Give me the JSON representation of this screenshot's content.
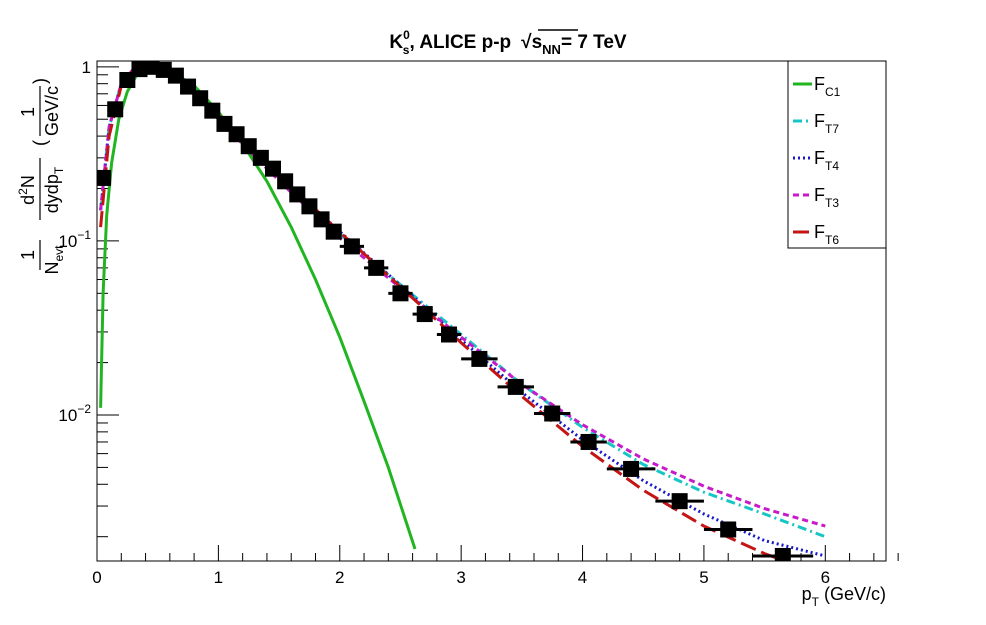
{
  "chart_data": {
    "type": "line",
    "title": {
      "base": "K",
      "sup": "0",
      "sub": "s",
      "rest": ", ALICE p-p",
      "energy_var": "s",
      "energy_sub": "NN",
      "energy_rest": "= 7 TeV"
    },
    "xlabel": {
      "base": "p",
      "sub": "T",
      "unit": " (GeV/c)"
    },
    "ylabel": {
      "frac1_num": "1",
      "frac1_den": "N",
      "frac1_den_sub": "evt",
      "frac2_num": "d",
      "frac2_num_sup": "2",
      "frac2_num_rest": "N",
      "frac2_den": "dydp",
      "frac2_den_sub": "T",
      "paren_open": "(",
      "frac3_num": "1",
      "frac3_den": "GeV/c",
      "paren_close": ")"
    },
    "x_ticks": [
      {
        "value": 0,
        "label": "0"
      },
      {
        "value": 1,
        "label": "1"
      },
      {
        "value": 2,
        "label": "2"
      },
      {
        "value": 3,
        "label": "3"
      },
      {
        "value": 4,
        "label": "4"
      },
      {
        "value": 5,
        "label": "5"
      },
      {
        "value": 6,
        "label": "6"
      }
    ],
    "y_ticks": [
      {
        "value": 1,
        "label": "1",
        "sup": ""
      },
      {
        "value": 0.1,
        "label": "10",
        "sup": "−1"
      },
      {
        "value": 0.01,
        "label": "10",
        "sup": "−2"
      }
    ],
    "xlim": [
      0,
      6.5
    ],
    "ylim": [
      0.00145,
      1.08
    ],
    "y_scale": "log",
    "grid": false,
    "legend_position": "top-right",
    "series": [
      {
        "name_base": "F",
        "name_sub": "C1",
        "color": "#22b522",
        "dash": "",
        "points": [
          [
            0.03,
            0.011
          ],
          [
            0.05,
            0.05
          ],
          [
            0.08,
            0.14
          ],
          [
            0.12,
            0.28
          ],
          [
            0.18,
            0.5
          ],
          [
            0.25,
            0.72
          ],
          [
            0.32,
            0.88
          ],
          [
            0.4,
            0.98
          ],
          [
            0.5,
            1.0
          ],
          [
            0.6,
            0.95
          ],
          [
            0.8,
            0.78
          ],
          [
            1.0,
            0.55
          ],
          [
            1.2,
            0.36
          ],
          [
            1.4,
            0.22
          ],
          [
            1.6,
            0.12
          ],
          [
            1.8,
            0.06
          ],
          [
            2.0,
            0.028
          ],
          [
            2.2,
            0.012
          ],
          [
            2.4,
            0.005
          ],
          [
            2.62,
            0.0017
          ]
        ]
      },
      {
        "name_base": "F",
        "name_sub": "T7",
        "color": "#16c6c6",
        "dash": "9,4,2,4",
        "points": [
          [
            0.03,
            0.15
          ],
          [
            0.1,
            0.45
          ],
          [
            0.2,
            0.8
          ],
          [
            0.3,
            0.97
          ],
          [
            0.42,
            1.02
          ],
          [
            0.55,
            0.97
          ],
          [
            0.7,
            0.83
          ],
          [
            0.85,
            0.67
          ],
          [
            1.0,
            0.52
          ],
          [
            1.2,
            0.38
          ],
          [
            1.4,
            0.27
          ],
          [
            1.6,
            0.2
          ],
          [
            1.8,
            0.148
          ],
          [
            2.0,
            0.11
          ],
          [
            2.3,
            0.073
          ],
          [
            2.6,
            0.049
          ],
          [
            3.0,
            0.029
          ],
          [
            3.5,
            0.015
          ],
          [
            4.0,
            0.0085
          ],
          [
            4.5,
            0.0052
          ],
          [
            5.0,
            0.0036
          ],
          [
            5.5,
            0.0027
          ],
          [
            6.0,
            0.002
          ]
        ]
      },
      {
        "name_base": "F",
        "name_sub": "T4",
        "color": "#1818c8",
        "dash": "2,3",
        "points": [
          [
            0.03,
            0.15
          ],
          [
            0.1,
            0.45
          ],
          [
            0.2,
            0.8
          ],
          [
            0.3,
            0.97
          ],
          [
            0.42,
            1.02
          ],
          [
            0.55,
            0.97
          ],
          [
            0.7,
            0.83
          ],
          [
            0.85,
            0.67
          ],
          [
            1.0,
            0.52
          ],
          [
            1.2,
            0.38
          ],
          [
            1.4,
            0.275
          ],
          [
            1.6,
            0.205
          ],
          [
            1.8,
            0.152
          ],
          [
            2.0,
            0.113
          ],
          [
            2.3,
            0.074
          ],
          [
            2.6,
            0.048
          ],
          [
            3.0,
            0.027
          ],
          [
            3.5,
            0.0135
          ],
          [
            4.0,
            0.0072
          ],
          [
            4.5,
            0.0042
          ],
          [
            5.0,
            0.0027
          ],
          [
            5.5,
            0.0019
          ],
          [
            6.0,
            0.00155
          ]
        ]
      },
      {
        "name_base": "F",
        "name_sub": "T3",
        "color": "#c71bc9",
        "dash": "6,4",
        "points": [
          [
            0.03,
            0.15
          ],
          [
            0.1,
            0.45
          ],
          [
            0.2,
            0.8
          ],
          [
            0.3,
            0.97
          ],
          [
            0.42,
            1.02
          ],
          [
            0.55,
            0.97
          ],
          [
            0.7,
            0.83
          ],
          [
            0.85,
            0.66
          ],
          [
            1.0,
            0.5
          ],
          [
            1.2,
            0.36
          ],
          [
            1.4,
            0.26
          ],
          [
            1.6,
            0.19
          ],
          [
            1.8,
            0.14
          ],
          [
            2.0,
            0.104
          ],
          [
            2.3,
            0.07
          ],
          [
            2.6,
            0.047
          ],
          [
            3.0,
            0.028
          ],
          [
            3.5,
            0.015
          ],
          [
            4.0,
            0.0088
          ],
          [
            4.5,
            0.0056
          ],
          [
            5.0,
            0.0039
          ],
          [
            5.5,
            0.0029
          ],
          [
            6.0,
            0.0023
          ]
        ]
      },
      {
        "name_base": "F",
        "name_sub": "T6",
        "color": "#c41414",
        "dash": "16,6",
        "points": [
          [
            0.03,
            0.12
          ],
          [
            0.1,
            0.4
          ],
          [
            0.2,
            0.78
          ],
          [
            0.3,
            0.96
          ],
          [
            0.42,
            1.03
          ],
          [
            0.55,
            0.98
          ],
          [
            0.7,
            0.85
          ],
          [
            0.85,
            0.68
          ],
          [
            1.0,
            0.53
          ],
          [
            1.2,
            0.38
          ],
          [
            1.4,
            0.28
          ],
          [
            1.6,
            0.205
          ],
          [
            1.8,
            0.152
          ],
          [
            2.0,
            0.112
          ],
          [
            2.3,
            0.073
          ],
          [
            2.6,
            0.047
          ],
          [
            3.0,
            0.026
          ],
          [
            3.5,
            0.0128
          ],
          [
            4.0,
            0.0066
          ],
          [
            4.5,
            0.0037
          ],
          [
            5.0,
            0.0023
          ],
          [
            5.5,
            0.0016
          ],
          [
            5.75,
            0.00138
          ]
        ]
      }
    ],
    "data_points": [
      {
        "x": 0.05,
        "y": 0.23,
        "xerr": 0.05
      },
      {
        "x": 0.15,
        "y": 0.57,
        "xerr": 0.05
      },
      {
        "x": 0.25,
        "y": 0.84,
        "xerr": 0.05
      },
      {
        "x": 0.35,
        "y": 0.97,
        "xerr": 0.05
      },
      {
        "x": 0.45,
        "y": 1.0,
        "xerr": 0.05
      },
      {
        "x": 0.55,
        "y": 0.96,
        "xerr": 0.05
      },
      {
        "x": 0.65,
        "y": 0.89,
        "xerr": 0.05
      },
      {
        "x": 0.75,
        "y": 0.77,
        "xerr": 0.05
      },
      {
        "x": 0.85,
        "y": 0.66,
        "xerr": 0.05
      },
      {
        "x": 0.95,
        "y": 0.56,
        "xerr": 0.05
      },
      {
        "x": 1.05,
        "y": 0.47,
        "xerr": 0.05
      },
      {
        "x": 1.15,
        "y": 0.41,
        "xerr": 0.05
      },
      {
        "x": 1.25,
        "y": 0.35,
        "xerr": 0.05
      },
      {
        "x": 1.35,
        "y": 0.3,
        "xerr": 0.05
      },
      {
        "x": 1.45,
        "y": 0.26,
        "xerr": 0.05
      },
      {
        "x": 1.55,
        "y": 0.22,
        "xerr": 0.05
      },
      {
        "x": 1.65,
        "y": 0.185,
        "xerr": 0.05
      },
      {
        "x": 1.75,
        "y": 0.158,
        "xerr": 0.05
      },
      {
        "x": 1.85,
        "y": 0.133,
        "xerr": 0.05
      },
      {
        "x": 1.95,
        "y": 0.113,
        "xerr": 0.05
      },
      {
        "x": 2.1,
        "y": 0.093,
        "xerr": 0.1
      },
      {
        "x": 2.3,
        "y": 0.07,
        "xerr": 0.1
      },
      {
        "x": 2.5,
        "y": 0.05,
        "xerr": 0.1
      },
      {
        "x": 2.7,
        "y": 0.038,
        "xerr": 0.1
      },
      {
        "x": 2.9,
        "y": 0.029,
        "xerr": 0.1
      },
      {
        "x": 3.15,
        "y": 0.021,
        "xerr": 0.15
      },
      {
        "x": 3.45,
        "y": 0.0145,
        "xerr": 0.15
      },
      {
        "x": 3.75,
        "y": 0.0102,
        "xerr": 0.15
      },
      {
        "x": 4.05,
        "y": 0.007,
        "xerr": 0.15
      },
      {
        "x": 4.4,
        "y": 0.0049,
        "xerr": 0.2
      },
      {
        "x": 4.8,
        "y": 0.0032,
        "xerr": 0.2
      },
      {
        "x": 5.2,
        "y": 0.0022,
        "xerr": 0.2
      },
      {
        "x": 5.65,
        "y": 0.00155,
        "xerr": 0.25
      }
    ]
  }
}
